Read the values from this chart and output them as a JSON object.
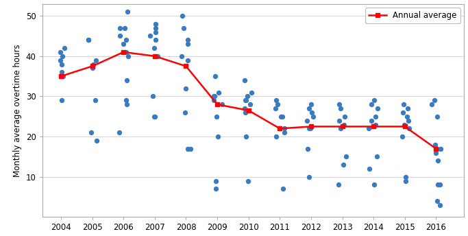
{
  "annual_years": [
    2004,
    2005,
    2006,
    2007,
    2008,
    2009,
    2010,
    2011,
    2012,
    2013,
    2014,
    2015,
    2016
  ],
  "annual_avg": [
    35,
    37.5,
    41,
    40,
    37.5,
    28,
    26.5,
    22,
    22.5,
    22.5,
    22.5,
    22.5,
    17
  ],
  "scatter_data": [
    [
      2004,
      29
    ],
    [
      2004,
      35
    ],
    [
      2004,
      36
    ],
    [
      2004,
      38
    ],
    [
      2004,
      39
    ],
    [
      2004,
      40
    ],
    [
      2004,
      41
    ],
    [
      2004,
      42
    ],
    [
      2005,
      19
    ],
    [
      2005,
      21
    ],
    [
      2005,
      29
    ],
    [
      2005,
      37
    ],
    [
      2005,
      38
    ],
    [
      2005,
      39
    ],
    [
      2005,
      44
    ],
    [
      2005,
      44
    ],
    [
      2006,
      21
    ],
    [
      2006,
      28
    ],
    [
      2006,
      29
    ],
    [
      2006,
      34
    ],
    [
      2006,
      40
    ],
    [
      2006,
      41
    ],
    [
      2006,
      43
    ],
    [
      2006,
      44
    ],
    [
      2006,
      45
    ],
    [
      2006,
      47
    ],
    [
      2006,
      47
    ],
    [
      2006,
      51
    ],
    [
      2007,
      25
    ],
    [
      2007,
      25
    ],
    [
      2007,
      30
    ],
    [
      2007,
      40
    ],
    [
      2007,
      42
    ],
    [
      2007,
      44
    ],
    [
      2007,
      45
    ],
    [
      2007,
      46
    ],
    [
      2007,
      47
    ],
    [
      2007,
      48
    ],
    [
      2008,
      17
    ],
    [
      2008,
      17
    ],
    [
      2008,
      26
    ],
    [
      2008,
      32
    ],
    [
      2008,
      39
    ],
    [
      2008,
      40
    ],
    [
      2008,
      43
    ],
    [
      2008,
      44
    ],
    [
      2008,
      47
    ],
    [
      2008,
      50
    ],
    [
      2009,
      7
    ],
    [
      2009,
      9
    ],
    [
      2009,
      20
    ],
    [
      2009,
      25
    ],
    [
      2009,
      28
    ],
    [
      2009,
      29
    ],
    [
      2009,
      30
    ],
    [
      2009,
      30
    ],
    [
      2009,
      31
    ],
    [
      2009,
      35
    ],
    [
      2010,
      9
    ],
    [
      2010,
      20
    ],
    [
      2010,
      26
    ],
    [
      2010,
      27
    ],
    [
      2010,
      28
    ],
    [
      2010,
      29
    ],
    [
      2010,
      29
    ],
    [
      2010,
      30
    ],
    [
      2010,
      31
    ],
    [
      2010,
      34
    ],
    [
      2011,
      7
    ],
    [
      2011,
      20
    ],
    [
      2011,
      21
    ],
    [
      2011,
      22
    ],
    [
      2011,
      22
    ],
    [
      2011,
      25
    ],
    [
      2011,
      25
    ],
    [
      2011,
      27
    ],
    [
      2011,
      28
    ],
    [
      2011,
      29
    ],
    [
      2012,
      10
    ],
    [
      2012,
      17
    ],
    [
      2012,
      22
    ],
    [
      2012,
      22
    ],
    [
      2012,
      24
    ],
    [
      2012,
      25
    ],
    [
      2012,
      26
    ],
    [
      2012,
      27
    ],
    [
      2012,
      28
    ],
    [
      2013,
      8
    ],
    [
      2013,
      13
    ],
    [
      2013,
      15
    ],
    [
      2013,
      22
    ],
    [
      2013,
      23
    ],
    [
      2013,
      24
    ],
    [
      2013,
      25
    ],
    [
      2013,
      27
    ],
    [
      2013,
      28
    ],
    [
      2014,
      8
    ],
    [
      2014,
      12
    ],
    [
      2014,
      15
    ],
    [
      2014,
      22
    ],
    [
      2014,
      23
    ],
    [
      2014,
      24
    ],
    [
      2014,
      25
    ],
    [
      2014,
      27
    ],
    [
      2014,
      28
    ],
    [
      2014,
      29
    ],
    [
      2015,
      9
    ],
    [
      2015,
      10
    ],
    [
      2015,
      20
    ],
    [
      2015,
      22
    ],
    [
      2015,
      23
    ],
    [
      2015,
      24
    ],
    [
      2015,
      25
    ],
    [
      2015,
      26
    ],
    [
      2015,
      27
    ],
    [
      2015,
      28
    ],
    [
      2016,
      3
    ],
    [
      2016,
      4
    ],
    [
      2016,
      8
    ],
    [
      2016,
      8
    ],
    [
      2016,
      14
    ],
    [
      2016,
      16
    ],
    [
      2016,
      17
    ],
    [
      2016,
      17
    ],
    [
      2016,
      18
    ],
    [
      2016,
      25
    ],
    [
      2016,
      28
    ],
    [
      2016,
      29
    ]
  ],
  "ylabel": "Monthly average overtime hours",
  "legend_label": "Annual average",
  "xlim": [
    2003.4,
    2016.9
  ],
  "ylim": [
    0,
    53
  ],
  "yticks": [
    10,
    20,
    30,
    40,
    50
  ],
  "xticks": [
    2004,
    2005,
    2006,
    2007,
    2008,
    2009,
    2010,
    2011,
    2012,
    2013,
    2014,
    2015,
    2016
  ],
  "line_color": "red",
  "scatter_color": "#3a7abf",
  "dot_size": 28,
  "line_width": 1.8,
  "marker_size": 5
}
